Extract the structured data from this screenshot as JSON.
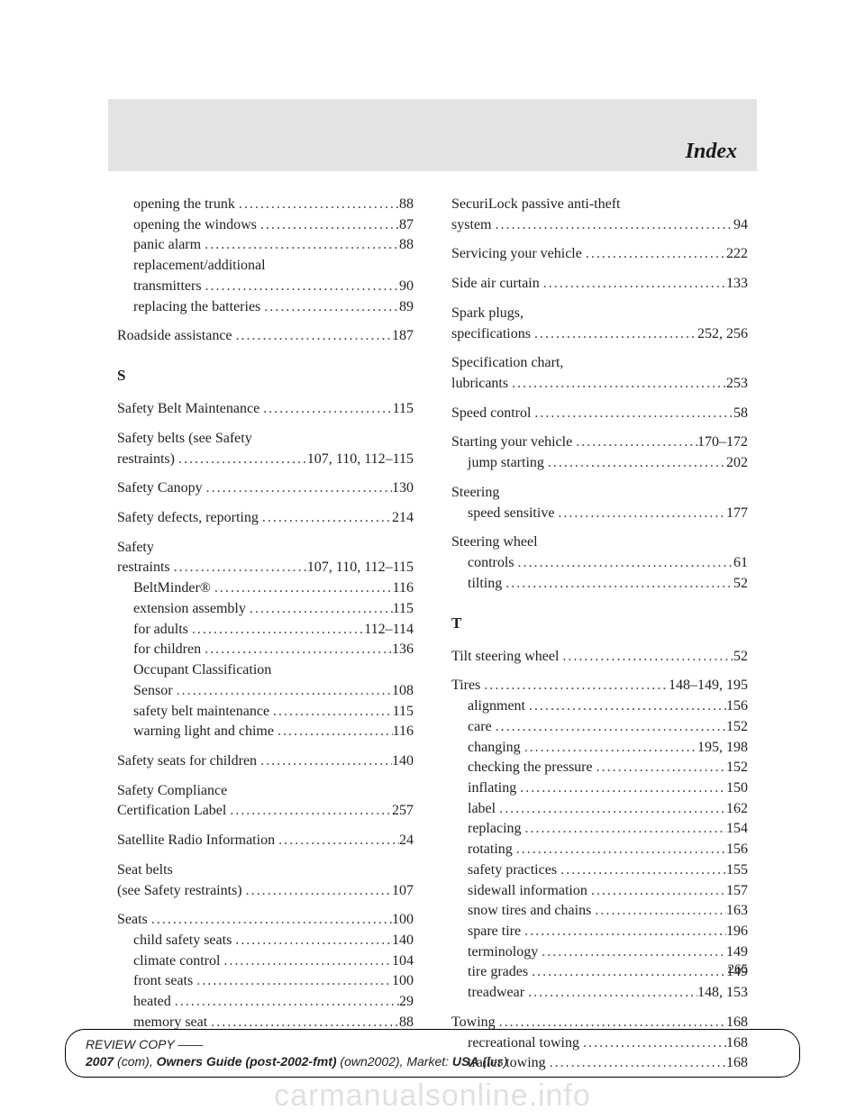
{
  "banner": {
    "title": "Index"
  },
  "page_number": "265",
  "footer": {
    "line1_a": "REVIEW COPY ——",
    "line2_year": "2007",
    "line2_a": " (com), ",
    "line2_b": "Owners Guide (post-2002-fmt)",
    "line2_c": " (own2002), Market: ",
    "line2_d": "USA",
    "line2_e": " (fus)"
  },
  "watermark": "carmanualsonline.info",
  "left": {
    "r_group1": [
      {
        "t": "opening the trunk",
        "p": "88",
        "sub": true
      },
      {
        "t": "opening the windows",
        "p": "87",
        "sub": true
      },
      {
        "t": "panic alarm",
        "p": "88",
        "sub": true
      },
      {
        "t": "replacement/additional",
        "p": "",
        "sub": true,
        "nodots": true
      },
      {
        "t": "transmitters",
        "p": "90",
        "sub": true
      },
      {
        "t": "replacing the batteries",
        "p": "89",
        "sub": true
      }
    ],
    "roadside": {
      "t": "Roadside assistance",
      "p": "187"
    },
    "sec_s": "S",
    "s_items": [
      {
        "block": [
          {
            "t": "Safety Belt Maintenance",
            "p": "115"
          }
        ]
      },
      {
        "block": [
          {
            "t": "Safety belts (see Safety",
            "p": "",
            "nodots": true
          },
          {
            "t": "restraints)",
            "p": "107, 110, 112–115"
          }
        ]
      },
      {
        "block": [
          {
            "t": "Safety Canopy",
            "p": "130"
          }
        ]
      },
      {
        "block": [
          {
            "t": "Safety defects, reporting",
            "p": "214"
          }
        ]
      },
      {
        "block": [
          {
            "t": "Safety",
            "p": "",
            "nodots": true
          },
          {
            "t": "restraints",
            "p": "107, 110, 112–115"
          },
          {
            "t": "BeltMinder®",
            "p": "116",
            "sub": true
          },
          {
            "t": "extension assembly",
            "p": "115",
            "sub": true
          },
          {
            "t": "for adults",
            "p": "112–114",
            "sub": true
          },
          {
            "t": "for children",
            "p": "136",
            "sub": true
          },
          {
            "t": "Occupant Classification",
            "p": "",
            "sub": true,
            "nodots": true
          },
          {
            "t": "Sensor",
            "p": "108",
            "sub": true
          },
          {
            "t": "safety belt maintenance",
            "p": "115",
            "sub": true
          },
          {
            "t": "warning light and chime",
            "p": "116",
            "sub": true
          }
        ]
      },
      {
        "block": [
          {
            "t": "Safety seats for children",
            "p": "140"
          }
        ]
      },
      {
        "block": [
          {
            "t": "Safety Compliance",
            "p": "",
            "nodots": true
          },
          {
            "t": "Certification Label",
            "p": "257"
          }
        ]
      },
      {
        "block": [
          {
            "t": "Satellite Radio Information",
            "p": "24"
          }
        ]
      },
      {
        "block": [
          {
            "t": "Seat belts",
            "p": "",
            "nodots": true
          },
          {
            "t": "(see Safety restraints)",
            "p": "107"
          }
        ]
      },
      {
        "block": [
          {
            "t": "Seats",
            "p": "100"
          },
          {
            "t": "child safety seats",
            "p": "140",
            "sub": true
          },
          {
            "t": "climate control",
            "p": "104",
            "sub": true
          },
          {
            "t": "front seats",
            "p": "100",
            "sub": true
          },
          {
            "t": "heated",
            "p": "29",
            "sub": true
          },
          {
            "t": "memory seat",
            "p": "88",
            "sub": true
          }
        ]
      }
    ]
  },
  "right": {
    "top": [
      {
        "block": [
          {
            "t": "SecuriLock passive anti-theft",
            "p": "",
            "nodots": true
          },
          {
            "t": "system",
            "p": "94"
          }
        ]
      },
      {
        "block": [
          {
            "t": "Servicing your vehicle",
            "p": "222"
          }
        ]
      },
      {
        "block": [
          {
            "t": "Side air curtain",
            "p": "133"
          }
        ]
      },
      {
        "block": [
          {
            "t": "Spark plugs,",
            "p": "",
            "nodots": true
          },
          {
            "t": "specifications",
            "p": "252, 256"
          }
        ]
      },
      {
        "block": [
          {
            "t": "Specification chart,",
            "p": "",
            "nodots": true
          },
          {
            "t": "lubricants",
            "p": "253"
          }
        ]
      },
      {
        "block": [
          {
            "t": "Speed control",
            "p": "58"
          }
        ]
      },
      {
        "block": [
          {
            "t": "Starting your vehicle",
            "p": "170–172"
          },
          {
            "t": "jump starting",
            "p": "202",
            "sub": true
          }
        ]
      },
      {
        "block": [
          {
            "t": "Steering",
            "p": "",
            "nodots": true
          },
          {
            "t": "speed sensitive",
            "p": "177",
            "sub": true
          }
        ]
      },
      {
        "block": [
          {
            "t": "Steering wheel",
            "p": "",
            "nodots": true
          },
          {
            "t": "controls",
            "p": "61",
            "sub": true
          },
          {
            "t": "tilting",
            "p": "52",
            "sub": true
          }
        ]
      }
    ],
    "sec_t": "T",
    "t_items": [
      {
        "block": [
          {
            "t": "Tilt steering wheel",
            "p": "52"
          }
        ]
      },
      {
        "block": [
          {
            "t": "Tires",
            "p": "148–149, 195"
          },
          {
            "t": "alignment",
            "p": "156",
            "sub": true
          },
          {
            "t": "care",
            "p": "152",
            "sub": true
          },
          {
            "t": "changing",
            "p": "195, 198",
            "sub": true
          },
          {
            "t": "checking the pressure",
            "p": "152",
            "sub": true
          },
          {
            "t": "inflating",
            "p": "150",
            "sub": true
          },
          {
            "t": "label",
            "p": "162",
            "sub": true
          },
          {
            "t": "replacing",
            "p": "154",
            "sub": true
          },
          {
            "t": "rotating",
            "p": "156",
            "sub": true
          },
          {
            "t": "safety practices",
            "p": "155",
            "sub": true
          },
          {
            "t": "sidewall information",
            "p": "157",
            "sub": true
          },
          {
            "t": "snow tires and chains",
            "p": "163",
            "sub": true
          },
          {
            "t": "spare tire",
            "p": "196",
            "sub": true
          },
          {
            "t": "terminology",
            "p": "149",
            "sub": true
          },
          {
            "t": "tire grades",
            "p": "149",
            "sub": true
          },
          {
            "t": "treadwear",
            "p": "148, 153",
            "sub": true
          }
        ]
      },
      {
        "block": [
          {
            "t": "Towing",
            "p": "168"
          },
          {
            "t": "recreational towing",
            "p": "168",
            "sub": true
          },
          {
            "t": "trailer towing",
            "p": "168",
            "sub": true
          }
        ]
      }
    ]
  }
}
